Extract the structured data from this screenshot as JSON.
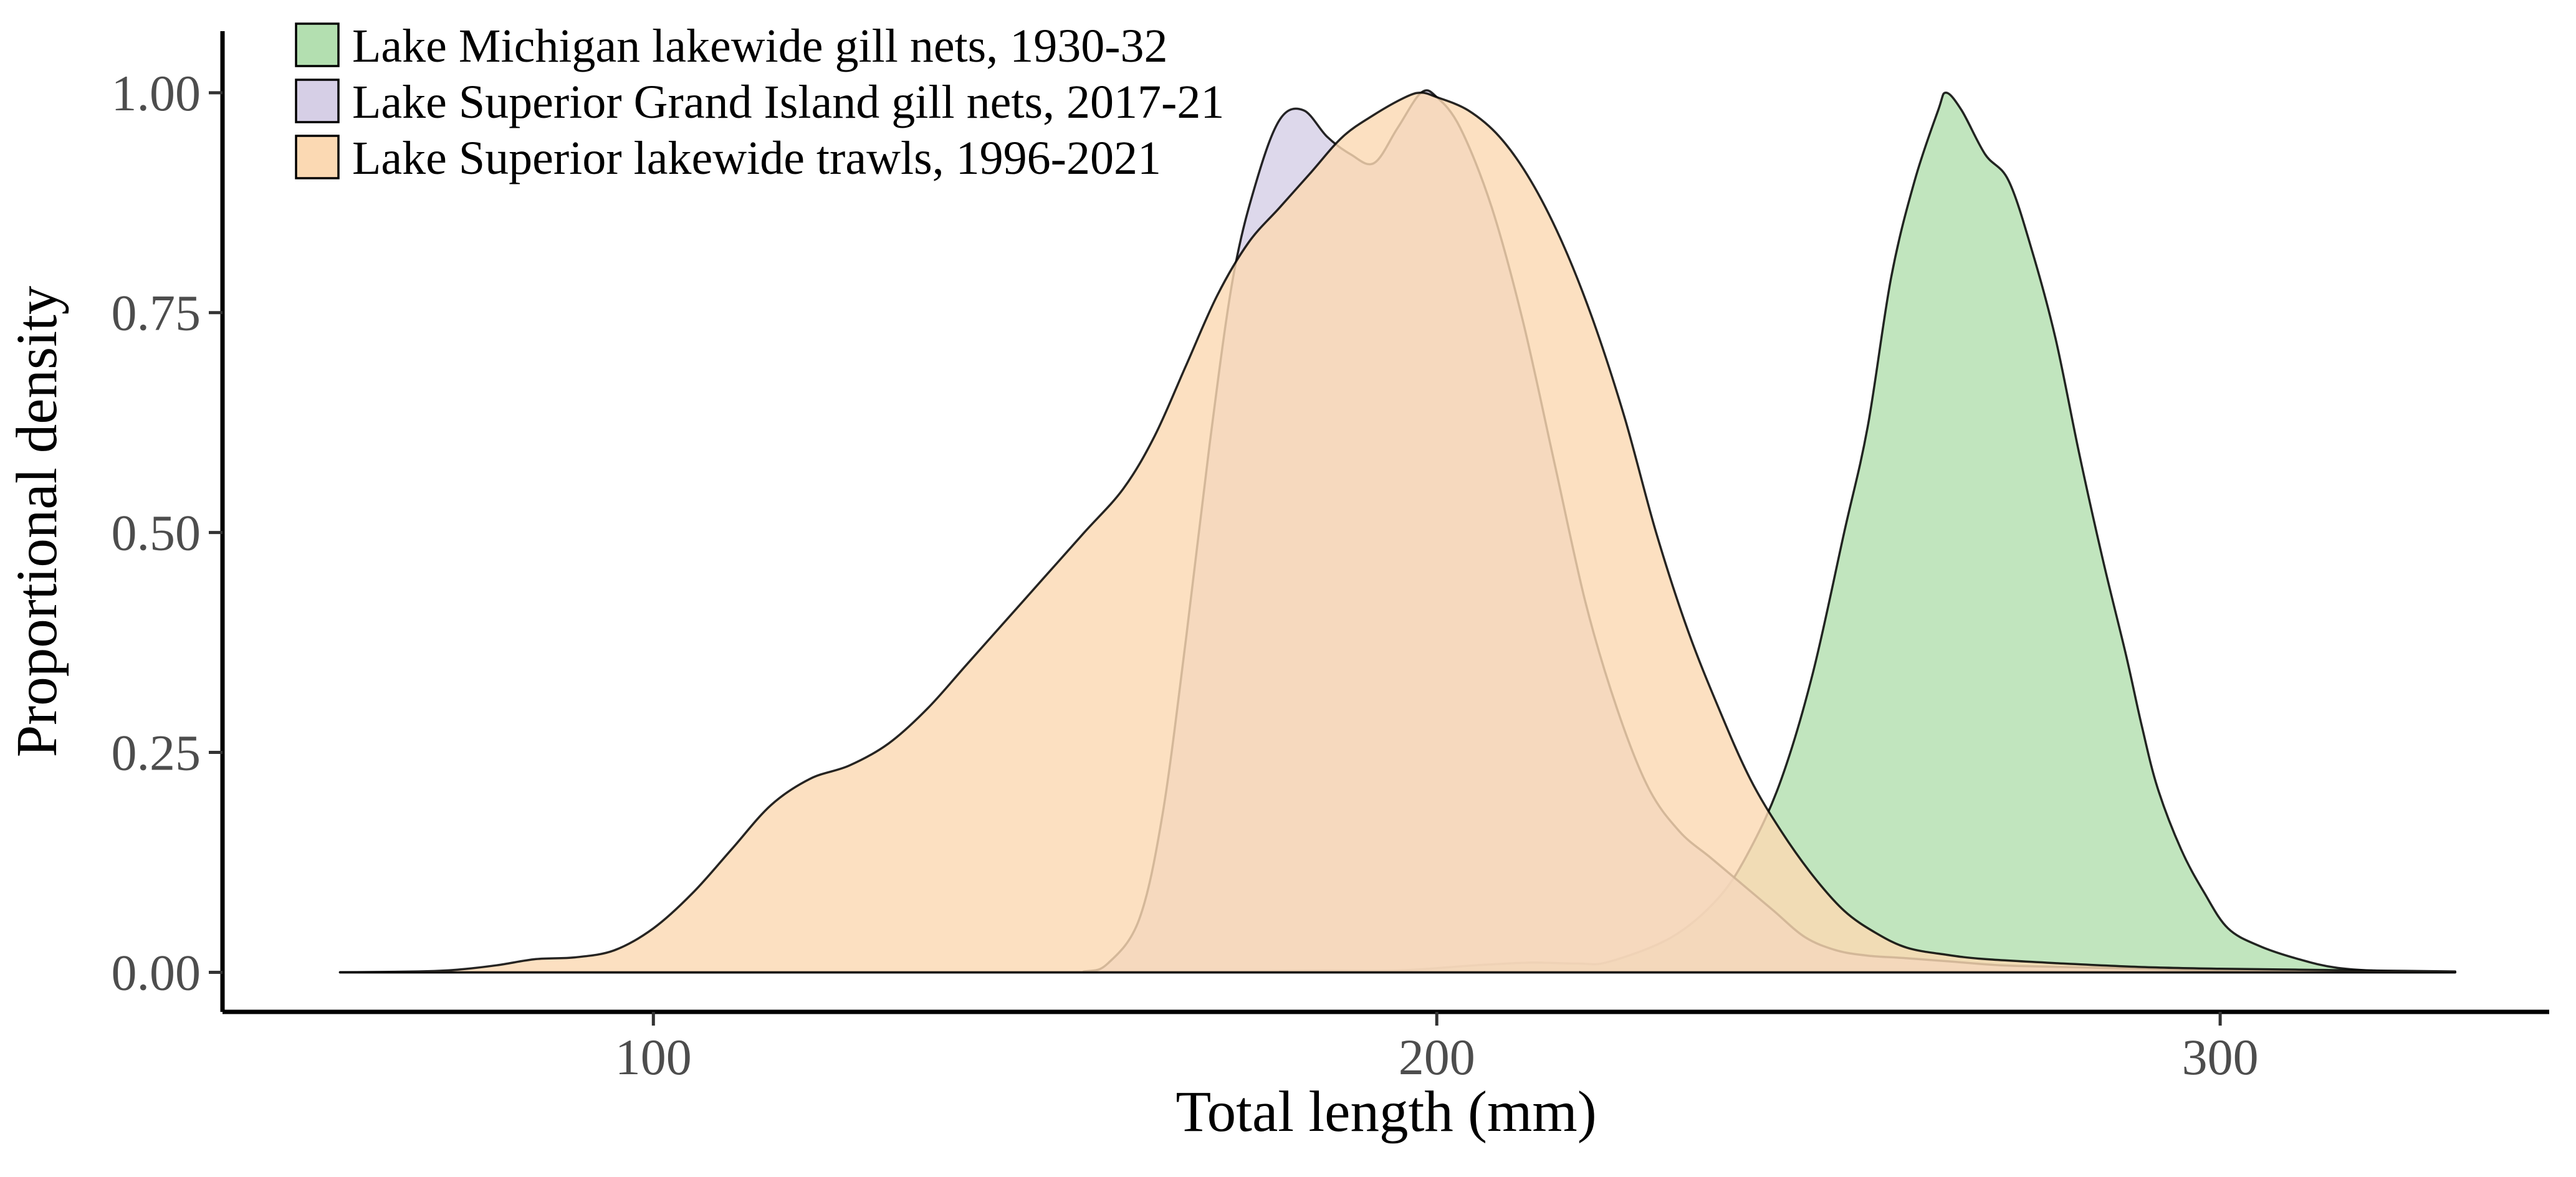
{
  "chart_data": {
    "type": "area",
    "xlabel": "Total length (mm)",
    "ylabel": "Proportional density",
    "xlim": [
      45,
      342
    ],
    "ylim": [
      -0.045,
      1.07
    ],
    "x_ticks": [
      100,
      200,
      300
    ],
    "x_tick_labels": [
      "100",
      "200",
      "300"
    ],
    "y_ticks": [
      0,
      0.25,
      0.5,
      0.75,
      1.0
    ],
    "y_tick_labels": [
      "0.00",
      "0.25",
      "0.50",
      "0.75",
      "1.00"
    ],
    "grid": false,
    "legend_position": "top-left",
    "series": [
      {
        "name": "Lake Michigan lakewide gill nets, 1930-32",
        "color": "#b3dfb0",
        "values": [
          [
            60,
            0
          ],
          [
            150,
            0
          ],
          [
            175,
            0.001
          ],
          [
            185,
            0.002
          ],
          [
            195,
            0.002
          ],
          [
            205,
            0.008
          ],
          [
            212,
            0.011
          ],
          [
            218,
            0.01
          ],
          [
            222,
            0.012
          ],
          [
            230,
            0.04
          ],
          [
            236,
            0.085
          ],
          [
            240,
            0.14
          ],
          [
            244,
            0.22
          ],
          [
            248,
            0.34
          ],
          [
            252,
            0.5
          ],
          [
            255,
            0.62
          ],
          [
            258,
            0.79
          ],
          [
            261,
            0.9
          ],
          [
            264,
            0.98
          ],
          [
            265,
            1.0
          ],
          [
            267,
            0.98
          ],
          [
            270,
            0.93
          ],
          [
            273,
            0.9
          ],
          [
            276,
            0.82
          ],
          [
            279,
            0.72
          ],
          [
            282,
            0.59
          ],
          [
            285,
            0.47
          ],
          [
            288,
            0.36
          ],
          [
            290,
            0.28
          ],
          [
            292,
            0.21
          ],
          [
            295,
            0.14
          ],
          [
            298,
            0.09
          ],
          [
            301,
            0.05
          ],
          [
            305,
            0.03
          ],
          [
            310,
            0.015
          ],
          [
            315,
            0.005
          ],
          [
            322,
            0.001
          ],
          [
            330,
            0
          ]
        ]
      },
      {
        "name": "Lake Superior Grand Island gill nets, 2017-21",
        "color": "#d6cfe6",
        "values": [
          [
            60,
            0
          ],
          [
            150,
            0
          ],
          [
            155,
            0.001
          ],
          [
            158,
            0.01
          ],
          [
            162,
            0.06
          ],
          [
            165,
            0.18
          ],
          [
            168,
            0.38
          ],
          [
            171,
            0.6
          ],
          [
            174,
            0.79
          ],
          [
            177,
            0.9
          ],
          [
            180,
            0.97
          ],
          [
            183,
            0.98
          ],
          [
            186,
            0.95
          ],
          [
            189,
            0.93
          ],
          [
            192,
            0.92
          ],
          [
            195,
            0.96
          ],
          [
            198,
            1.0
          ],
          [
            200,
            0.995
          ],
          [
            203,
            0.96
          ],
          [
            207,
            0.87
          ],
          [
            211,
            0.74
          ],
          [
            215,
            0.58
          ],
          [
            219,
            0.42
          ],
          [
            223,
            0.3
          ],
          [
            227,
            0.21
          ],
          [
            231,
            0.16
          ],
          [
            235,
            0.13
          ],
          [
            239,
            0.1
          ],
          [
            243,
            0.07
          ],
          [
            247,
            0.04
          ],
          [
            251,
            0.025
          ],
          [
            255,
            0.019
          ],
          [
            260,
            0.016
          ],
          [
            266,
            0.012
          ],
          [
            272,
            0.008
          ],
          [
            280,
            0.006
          ],
          [
            290,
            0.004
          ],
          [
            300,
            0.002
          ],
          [
            310,
            0.001
          ],
          [
            320,
            0
          ],
          [
            330,
            0
          ]
        ]
      },
      {
        "name": "Lake Superior lakewide trawls, 1996-2021",
        "color": "#fbd9b3",
        "values": [
          [
            60,
            0
          ],
          [
            70,
            0.001
          ],
          [
            75,
            0.003
          ],
          [
            80,
            0.008
          ],
          [
            85,
            0.015
          ],
          [
            90,
            0.017
          ],
          [
            95,
            0.025
          ],
          [
            100,
            0.05
          ],
          [
            105,
            0.09
          ],
          [
            110,
            0.14
          ],
          [
            115,
            0.19
          ],
          [
            120,
            0.22
          ],
          [
            125,
            0.235
          ],
          [
            130,
            0.26
          ],
          [
            135,
            0.3
          ],
          [
            140,
            0.35
          ],
          [
            145,
            0.4
          ],
          [
            150,
            0.45
          ],
          [
            155,
            0.5
          ],
          [
            160,
            0.55
          ],
          [
            164,
            0.61
          ],
          [
            168,
            0.69
          ],
          [
            172,
            0.77
          ],
          [
            176,
            0.83
          ],
          [
            180,
            0.87
          ],
          [
            184,
            0.91
          ],
          [
            188,
            0.95
          ],
          [
            192,
            0.975
          ],
          [
            196,
            0.995
          ],
          [
            198,
            1.0
          ],
          [
            200,
            0.995
          ],
          [
            204,
            0.98
          ],
          [
            208,
            0.95
          ],
          [
            212,
            0.9
          ],
          [
            216,
            0.83
          ],
          [
            220,
            0.74
          ],
          [
            224,
            0.63
          ],
          [
            228,
            0.5
          ],
          [
            232,
            0.39
          ],
          [
            236,
            0.3
          ],
          [
            240,
            0.22
          ],
          [
            244,
            0.16
          ],
          [
            248,
            0.11
          ],
          [
            252,
            0.07
          ],
          [
            256,
            0.045
          ],
          [
            260,
            0.028
          ],
          [
            265,
            0.02
          ],
          [
            270,
            0.015
          ],
          [
            280,
            0.01
          ],
          [
            290,
            0.006
          ],
          [
            300,
            0.004
          ],
          [
            310,
            0.003
          ],
          [
            320,
            0.002
          ],
          [
            330,
            0.001
          ]
        ]
      }
    ]
  }
}
